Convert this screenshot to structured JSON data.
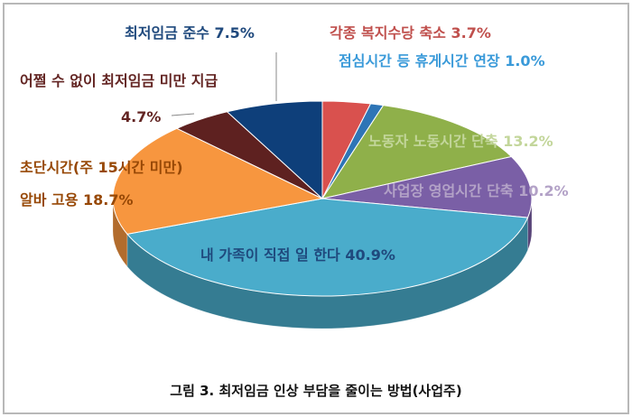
{
  "chart_data": {
    "type": "pie3d",
    "title": "그림 3. 최저임금 인상 부담을 줄이는 방법(사업주)",
    "categories": [
      "각종 복지수당 축소",
      "점심시간 등 휴게시간 연장",
      "노동자 노동시간 단축",
      "사업장 영업시간 단축",
      "내 가족이 직접 일 한다",
      "초단시간(주 15시간 미만) 알바 고용",
      "어쩔 수 없이 최저임금 미만 지급",
      "최저임금 준수"
    ],
    "values": [
      3.7,
      1.0,
      13.2,
      10.2,
      40.9,
      18.7,
      4.7,
      7.5
    ],
    "value_labels": [
      "3.7%",
      "1.0%",
      "13.2%",
      "10.2%",
      "40.9%",
      "18.7%",
      "4.7%",
      "7.5%"
    ],
    "colors": [
      "#d9514e",
      "#2e75b6",
      "#8fb04a",
      "#7a5fa6",
      "#4aaccb",
      "#f7963f",
      "#5e2120",
      "#0e3f7a"
    ]
  }
}
